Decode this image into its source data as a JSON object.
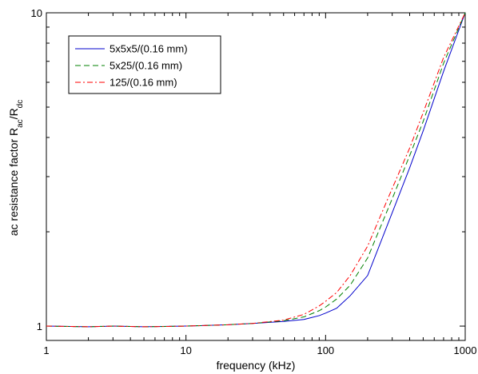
{
  "chart_data": {
    "type": "line",
    "title": "",
    "xlabel": "frequency (kHz)",
    "ylabel": {
      "main": "ac resistance factor R",
      "sub1": "ac",
      "mid": "/R",
      "sub2": "dc"
    },
    "x_scale": "log",
    "y_scale": "log",
    "xlim": [
      1,
      1000
    ],
    "ylim": [
      0.9,
      10
    ],
    "x_ticks": [
      {
        "value": 1,
        "label": "1"
      },
      {
        "value": 10,
        "label": "10"
      },
      {
        "value": 100,
        "label": "100"
      },
      {
        "value": 1000,
        "label": "1000"
      }
    ],
    "y_ticks": [
      {
        "value": 1,
        "label": "1"
      },
      {
        "value": 10,
        "label": "10"
      }
    ],
    "grid": false,
    "legend_position": "top-left",
    "series": [
      {
        "name": "5x5x5/(0.16 mm)",
        "color": "#0000cc",
        "dash": "solid",
        "points": [
          [
            1,
            1.0
          ],
          [
            2,
            0.995
          ],
          [
            3,
            1.0
          ],
          [
            5,
            0.995
          ],
          [
            10,
            1.0
          ],
          [
            20,
            1.01
          ],
          [
            30,
            1.02
          ],
          [
            50,
            1.035
          ],
          [
            70,
            1.05
          ],
          [
            90,
            1.08
          ],
          [
            100,
            1.1
          ],
          [
            120,
            1.14
          ],
          [
            150,
            1.25
          ],
          [
            200,
            1.45
          ],
          [
            300,
            2.3
          ],
          [
            400,
            3.2
          ],
          [
            500,
            4.2
          ],
          [
            700,
            6.5
          ],
          [
            1000,
            10.0
          ]
        ]
      },
      {
        "name": "5x25/(0.16 mm)",
        "color": "#008000",
        "dash": "dashed",
        "points": [
          [
            1,
            1.0
          ],
          [
            2,
            0.995
          ],
          [
            3,
            1.0
          ],
          [
            5,
            0.995
          ],
          [
            10,
            1.0
          ],
          [
            20,
            1.01
          ],
          [
            30,
            1.02
          ],
          [
            50,
            1.04
          ],
          [
            70,
            1.07
          ],
          [
            90,
            1.12
          ],
          [
            100,
            1.15
          ],
          [
            120,
            1.22
          ],
          [
            150,
            1.35
          ],
          [
            200,
            1.65
          ],
          [
            300,
            2.55
          ],
          [
            400,
            3.5
          ],
          [
            500,
            4.5
          ],
          [
            700,
            6.9
          ],
          [
            1000,
            10.0
          ]
        ]
      },
      {
        "name": "125/(0.16 mm)",
        "color": "#ff0000",
        "dash": "dashdot",
        "points": [
          [
            1,
            1.0
          ],
          [
            2,
            0.995
          ],
          [
            3,
            1.0
          ],
          [
            5,
            0.995
          ],
          [
            10,
            1.0
          ],
          [
            20,
            1.01
          ],
          [
            30,
            1.02
          ],
          [
            50,
            1.045
          ],
          [
            70,
            1.09
          ],
          [
            90,
            1.16
          ],
          [
            100,
            1.2
          ],
          [
            120,
            1.28
          ],
          [
            150,
            1.45
          ],
          [
            200,
            1.8
          ],
          [
            300,
            2.75
          ],
          [
            400,
            3.7
          ],
          [
            500,
            4.8
          ],
          [
            700,
            7.2
          ],
          [
            1000,
            10.0
          ]
        ]
      }
    ]
  }
}
